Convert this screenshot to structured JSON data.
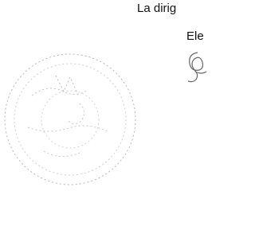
{
  "document": {
    "heading": "La dirig",
    "signer": "Ele"
  }
}
